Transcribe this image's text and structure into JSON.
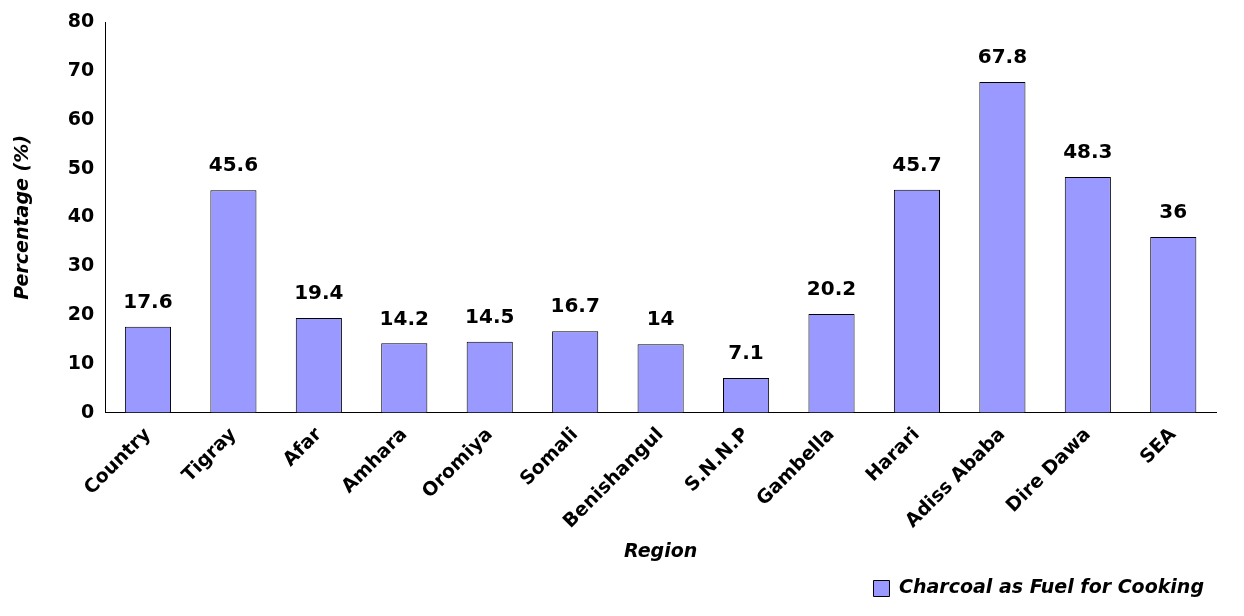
{
  "chart_data": {
    "type": "bar",
    "xlabel": "Region",
    "ylabel": "Percentage (%)",
    "categories": [
      "Country",
      "Tigray",
      "Afar",
      "Amhara",
      "Oromiya",
      "Somali",
      "Benishangul",
      "S.N.N.P",
      "Gambella",
      "Harari",
      "Adiss Ababa",
      "Dire Dawa",
      "SEA"
    ],
    "series": [
      {
        "name": "Charcoal as Fuel for Cooking",
        "color": "#9999ff",
        "values": [
          17.6,
          45.6,
          19.4,
          14.2,
          14.5,
          16.7,
          14,
          7.1,
          20.2,
          45.7,
          67.8,
          48.3,
          36
        ]
      }
    ],
    "ylim": [
      0,
      80
    ],
    "yticks": [
      0,
      10,
      20,
      30,
      40,
      50,
      60,
      70,
      80
    ],
    "grid": false,
    "legend": "bottom right",
    "data_labels": true
  }
}
